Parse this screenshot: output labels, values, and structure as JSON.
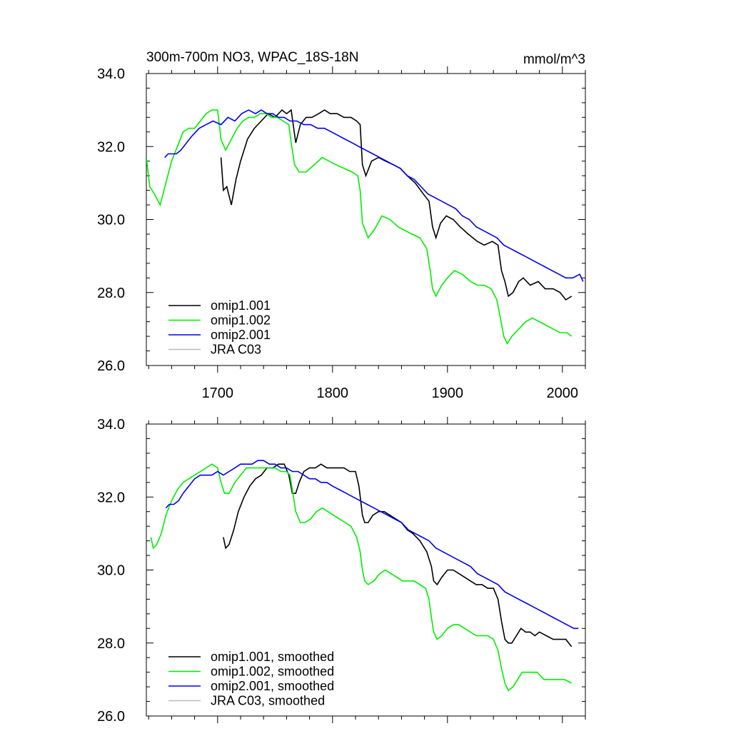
{
  "chart_data": [
    {
      "type": "line",
      "title": "300m-700m NO3, WPAC_18S-18N",
      "units": "mmol/m^3",
      "xlabel": "",
      "ylabel": "",
      "xlim": [
        1638,
        2020
      ],
      "ylim": [
        26.0,
        34.0
      ],
      "xticks": [
        1700,
        1800,
        1900,
        2000
      ],
      "yticks": [
        26.0,
        28.0,
        30.0,
        32.0,
        34.0
      ],
      "xtick_labels": [
        "1700",
        "1800",
        "1900",
        "2000"
      ],
      "ytick_labels": [
        "26.0",
        "28.0",
        "30.0",
        "32.0",
        "34.0"
      ],
      "show_x_tick_labels": true,
      "legend_position": "bottom-left",
      "series": [
        {
          "name": "omip1.001",
          "color": "#000000",
          "x": [
            1703,
            1705,
            1708,
            1712,
            1716,
            1720,
            1726,
            1732,
            1738,
            1744,
            1750,
            1756,
            1760,
            1764,
            1768,
            1772,
            1777,
            1782,
            1788,
            1793,
            1798,
            1804,
            1810,
            1816,
            1821,
            1824,
            1826,
            1829,
            1834,
            1840,
            1846,
            1853,
            1859,
            1865,
            1872,
            1879,
            1884,
            1887,
            1890,
            1894,
            1899,
            1905,
            1911,
            1918,
            1926,
            1932,
            1939,
            1944,
            1947,
            1950,
            1953,
            1957,
            1962,
            1966,
            1972,
            1979,
            1985,
            1992,
            1998,
            2003,
            2008
          ],
          "values": [
            31.7,
            30.8,
            30.9,
            30.4,
            31.1,
            31.6,
            32.2,
            32.5,
            32.7,
            32.9,
            32.8,
            33.0,
            32.9,
            33.0,
            32.1,
            32.6,
            32.8,
            32.8,
            32.9,
            33.0,
            32.9,
            32.9,
            32.8,
            32.8,
            32.7,
            32.6,
            31.5,
            31.2,
            31.6,
            31.7,
            31.6,
            31.5,
            31.4,
            31.2,
            31.0,
            30.7,
            30.5,
            29.8,
            29.5,
            29.9,
            30.1,
            30.0,
            29.8,
            29.6,
            29.4,
            29.3,
            29.4,
            29.3,
            28.6,
            28.3,
            27.9,
            28.0,
            28.3,
            28.4,
            28.2,
            28.3,
            28.1,
            28.1,
            28.0,
            27.8,
            27.9
          ]
        },
        {
          "name": "omip1.002",
          "color": "#00ee00",
          "x": [
            1638,
            1641,
            1645,
            1650,
            1655,
            1660,
            1665,
            1670,
            1675,
            1680,
            1685,
            1690,
            1695,
            1700,
            1703,
            1707,
            1712,
            1717,
            1722,
            1727,
            1732,
            1737,
            1742,
            1747,
            1752,
            1757,
            1762,
            1764,
            1767,
            1771,
            1777,
            1784,
            1791,
            1797,
            1803,
            1810,
            1817,
            1822,
            1824,
            1826,
            1831,
            1836,
            1843,
            1850,
            1857,
            1863,
            1869,
            1876,
            1882,
            1885,
            1887,
            1890,
            1895,
            1900,
            1906,
            1913,
            1920,
            1926,
            1932,
            1938,
            1943,
            1946,
            1949,
            1952,
            1956,
            1962,
            1968,
            1974,
            1980,
            1986,
            1992,
            1998,
            2004,
            2008
          ],
          "values": [
            31.7,
            30.9,
            30.7,
            30.4,
            31.0,
            31.6,
            32.0,
            32.4,
            32.5,
            32.5,
            32.7,
            32.9,
            33.0,
            33.0,
            32.2,
            31.9,
            32.2,
            32.5,
            32.7,
            32.8,
            32.8,
            32.9,
            32.9,
            32.8,
            32.8,
            32.7,
            32.6,
            32.1,
            31.5,
            31.3,
            31.3,
            31.5,
            31.7,
            31.6,
            31.5,
            31.4,
            31.3,
            31.2,
            30.8,
            29.9,
            29.5,
            29.7,
            30.1,
            30.0,
            29.8,
            29.7,
            29.6,
            29.5,
            29.2,
            28.6,
            28.1,
            27.9,
            28.2,
            28.4,
            28.6,
            28.5,
            28.3,
            28.2,
            28.2,
            28.1,
            27.8,
            27.3,
            26.8,
            26.6,
            26.8,
            27.0,
            27.2,
            27.3,
            27.2,
            27.1,
            27.0,
            26.9,
            26.9,
            26.8
          ]
        },
        {
          "name": "omip2.001",
          "color": "#0000ee",
          "x": [
            1654,
            1657,
            1660,
            1664,
            1668,
            1673,
            1678,
            1684,
            1690,
            1696,
            1703,
            1709,
            1715,
            1721,
            1727,
            1733,
            1738,
            1743,
            1748,
            1753,
            1758,
            1763,
            1769,
            1775,
            1781,
            1787,
            1793,
            1799,
            1805,
            1811,
            1817,
            1823,
            1829,
            1835,
            1841,
            1847,
            1853,
            1859,
            1865,
            1871,
            1877,
            1883,
            1889,
            1895,
            1901,
            1907,
            1913,
            1919,
            1925,
            1931,
            1937,
            1943,
            1949,
            1955,
            1961,
            1967,
            1973,
            1979,
            1985,
            1991,
            1997,
            2003,
            2009,
            2015,
            2018
          ],
          "values": [
            31.7,
            31.8,
            31.8,
            31.8,
            31.9,
            32.1,
            32.3,
            32.5,
            32.6,
            32.7,
            32.6,
            32.8,
            32.7,
            32.9,
            33.0,
            32.9,
            33.0,
            32.9,
            32.9,
            32.8,
            32.8,
            32.7,
            32.7,
            32.6,
            32.6,
            32.5,
            32.5,
            32.4,
            32.3,
            32.2,
            32.1,
            32.0,
            31.9,
            31.8,
            31.7,
            31.6,
            31.5,
            31.4,
            31.2,
            31.1,
            30.9,
            30.7,
            30.6,
            30.5,
            30.4,
            30.3,
            30.1,
            30.0,
            29.8,
            29.7,
            29.6,
            29.5,
            29.3,
            29.2,
            29.1,
            29.0,
            28.9,
            28.8,
            28.7,
            28.6,
            28.5,
            28.4,
            28.4,
            28.5,
            28.3
          ]
        },
        {
          "name": "JRA C03",
          "color": "#bbbbbb",
          "x": [],
          "values": []
        }
      ]
    },
    {
      "type": "line",
      "title": "",
      "units": "",
      "xlabel": "",
      "ylabel": "",
      "xlim": [
        1638,
        2020
      ],
      "ylim": [
        26.0,
        34.0
      ],
      "xticks": [
        1700,
        1800,
        1900,
        2000
      ],
      "yticks": [
        26.0,
        28.0,
        30.0,
        32.0,
        34.0
      ],
      "xtick_labels": [],
      "ytick_labels": [
        "26.0",
        "28.0",
        "30.0",
        "32.0",
        "34.0"
      ],
      "show_x_tick_labels": false,
      "legend_position": "bottom-left",
      "series": [
        {
          "name": "omip1.001, smoothed",
          "color": "#000000",
          "x": [
            1705,
            1707,
            1710,
            1714,
            1718,
            1723,
            1728,
            1733,
            1738,
            1743,
            1748,
            1753,
            1758,
            1762,
            1765,
            1768,
            1771,
            1775,
            1780,
            1785,
            1790,
            1795,
            1800,
            1805,
            1810,
            1815,
            1820,
            1823,
            1826,
            1828,
            1831,
            1835,
            1840,
            1845,
            1850,
            1855,
            1860,
            1865,
            1870,
            1876,
            1882,
            1886,
            1888,
            1891,
            1895,
            1900,
            1905,
            1910,
            1915,
            1920,
            1925,
            1930,
            1935,
            1940,
            1944,
            1947,
            1950,
            1953,
            1956,
            1960,
            1964,
            1968,
            1972,
            1976,
            1980,
            1986,
            1992,
            1998,
            2003,
            2008
          ],
          "values": [
            30.9,
            30.6,
            30.7,
            31.1,
            31.6,
            32.0,
            32.3,
            32.5,
            32.6,
            32.8,
            32.8,
            32.9,
            32.9,
            32.6,
            32.1,
            32.1,
            32.4,
            32.7,
            32.8,
            32.8,
            32.9,
            32.8,
            32.8,
            32.8,
            32.8,
            32.7,
            32.7,
            32.3,
            31.5,
            31.3,
            31.3,
            31.5,
            31.6,
            31.6,
            31.5,
            31.4,
            31.3,
            31.1,
            31.0,
            30.8,
            30.5,
            30.1,
            29.7,
            29.6,
            29.8,
            30.0,
            30.0,
            29.9,
            29.8,
            29.7,
            29.6,
            29.6,
            29.5,
            29.5,
            29.2,
            28.6,
            28.1,
            28.0,
            28.0,
            28.2,
            28.4,
            28.3,
            28.3,
            28.2,
            28.3,
            28.2,
            28.1,
            28.1,
            28.1,
            27.9
          ]
        },
        {
          "name": "omip1.002, smoothed",
          "color": "#00ee00",
          "x": [
            1642,
            1644,
            1647,
            1651,
            1655,
            1660,
            1665,
            1670,
            1675,
            1680,
            1685,
            1690,
            1695,
            1700,
            1703,
            1706,
            1710,
            1715,
            1720,
            1725,
            1730,
            1735,
            1740,
            1745,
            1750,
            1755,
            1760,
            1763,
            1765,
            1768,
            1772,
            1776,
            1781,
            1786,
            1791,
            1796,
            1801,
            1806,
            1811,
            1816,
            1821,
            1824,
            1826,
            1828,
            1831,
            1836,
            1841,
            1846,
            1851,
            1856,
            1861,
            1866,
            1871,
            1876,
            1881,
            1884,
            1886,
            1888,
            1891,
            1895,
            1900,
            1905,
            1910,
            1915,
            1920,
            1925,
            1930,
            1935,
            1940,
            1944,
            1947,
            1950,
            1953,
            1957,
            1961,
            1965,
            1969,
            1973,
            1978,
            1984,
            1990,
            1996,
            2002,
            2008
          ],
          "values": [
            30.9,
            30.6,
            30.7,
            31.0,
            31.5,
            31.9,
            32.2,
            32.4,
            32.5,
            32.6,
            32.7,
            32.8,
            32.9,
            32.8,
            32.4,
            32.1,
            32.1,
            32.4,
            32.6,
            32.8,
            32.8,
            32.8,
            32.8,
            32.8,
            32.8,
            32.7,
            32.7,
            32.6,
            32.2,
            31.6,
            31.3,
            31.3,
            31.4,
            31.6,
            31.7,
            31.6,
            31.5,
            31.4,
            31.3,
            31.2,
            30.9,
            30.5,
            30.0,
            29.7,
            29.6,
            29.7,
            29.9,
            30.0,
            29.9,
            29.8,
            29.7,
            29.7,
            29.7,
            29.6,
            29.5,
            29.2,
            28.7,
            28.3,
            28.1,
            28.2,
            28.4,
            28.5,
            28.5,
            28.4,
            28.3,
            28.2,
            28.2,
            28.2,
            28.1,
            27.8,
            27.3,
            26.9,
            26.7,
            26.8,
            27.0,
            27.2,
            27.2,
            27.2,
            27.2,
            27.0,
            27.0,
            27.0,
            27.0,
            26.9
          ]
        },
        {
          "name": "omip2.001, smoothed",
          "color": "#0000ee",
          "x": [
            1655,
            1658,
            1662,
            1666,
            1670,
            1675,
            1680,
            1685,
            1690,
            1695,
            1700,
            1705,
            1710,
            1715,
            1720,
            1725,
            1730,
            1735,
            1740,
            1745,
            1750,
            1755,
            1760,
            1765,
            1770,
            1775,
            1780,
            1785,
            1790,
            1795,
            1800,
            1806,
            1812,
            1818,
            1824,
            1830,
            1836,
            1842,
            1848,
            1854,
            1860,
            1866,
            1872,
            1878,
            1884,
            1890,
            1896,
            1902,
            1908,
            1914,
            1920,
            1926,
            1932,
            1938,
            1944,
            1950,
            1956,
            1962,
            1968,
            1974,
            1980,
            1986,
            1992,
            1998,
            2004,
            2010,
            2014
          ],
          "values": [
            31.7,
            31.8,
            31.8,
            31.9,
            32.1,
            32.3,
            32.5,
            32.6,
            32.6,
            32.6,
            32.7,
            32.6,
            32.7,
            32.8,
            32.9,
            32.9,
            32.9,
            33.0,
            33.0,
            32.9,
            32.9,
            32.8,
            32.8,
            32.7,
            32.7,
            32.6,
            32.5,
            32.5,
            32.4,
            32.4,
            32.3,
            32.2,
            32.1,
            32.0,
            31.9,
            31.8,
            31.7,
            31.6,
            31.5,
            31.4,
            31.3,
            31.1,
            31.0,
            30.9,
            30.8,
            30.6,
            30.5,
            30.4,
            30.3,
            30.2,
            30.1,
            29.9,
            29.8,
            29.7,
            29.6,
            29.4,
            29.3,
            29.2,
            29.1,
            29.0,
            28.9,
            28.8,
            28.7,
            28.6,
            28.5,
            28.4,
            28.4
          ]
        },
        {
          "name": "JRA C03, smoothed",
          "color": "#bbbbbb",
          "x": [],
          "values": []
        }
      ]
    }
  ]
}
